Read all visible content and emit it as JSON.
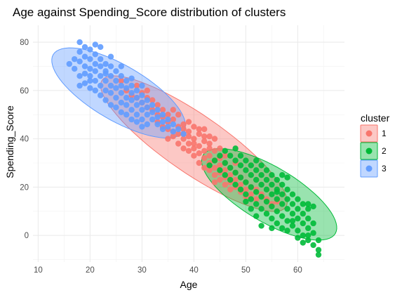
{
  "chart_data": {
    "type": "scatter",
    "title": "Age against Spending_Score distribution of clusters",
    "xlabel": "Age",
    "ylabel": "Spending_Score",
    "xlim": [
      9,
      69
    ],
    "ylim": [
      -11,
      87
    ],
    "xticks": [
      10,
      20,
      30,
      40,
      50,
      60
    ],
    "yticks": [
      0,
      20,
      40,
      60,
      80
    ],
    "grid": true,
    "legend": {
      "title": "cluster",
      "placement": "right"
    },
    "series": [
      {
        "name": "1",
        "color": "#F8766D",
        "ellipse": {
          "center": [
            40,
            38
          ],
          "angle_deg": -34.6,
          "semi_major": 21.5,
          "semi_minor": 5.6
        },
        "points": [
          [
            26,
            64
          ],
          [
            27,
            60
          ],
          [
            28,
            58
          ],
          [
            29,
            57
          ],
          [
            29,
            62
          ],
          [
            30,
            55
          ],
          [
            30,
            59
          ],
          [
            31,
            53
          ],
          [
            31,
            57
          ],
          [
            32,
            52
          ],
          [
            32,
            56
          ],
          [
            33,
            50
          ],
          [
            33,
            54
          ],
          [
            33,
            47
          ],
          [
            34,
            52
          ],
          [
            34,
            45
          ],
          [
            34,
            49
          ],
          [
            35,
            50
          ],
          [
            35,
            44
          ],
          [
            35,
            47
          ],
          [
            36,
            48
          ],
          [
            36,
            43
          ],
          [
            36,
            41
          ],
          [
            37,
            45
          ],
          [
            37,
            42
          ],
          [
            37,
            38
          ],
          [
            38,
            44
          ],
          [
            38,
            40
          ],
          [
            38,
            36
          ],
          [
            38,
            42
          ],
          [
            39,
            41
          ],
          [
            39,
            38
          ],
          [
            39,
            35
          ],
          [
            39,
            43
          ],
          [
            40,
            40
          ],
          [
            40,
            36
          ],
          [
            40,
            33
          ],
          [
            40,
            38
          ],
          [
            41,
            42
          ],
          [
            41,
            37
          ],
          [
            41,
            34
          ],
          [
            41,
            30
          ],
          [
            42,
            39
          ],
          [
            42,
            35
          ],
          [
            42,
            32
          ],
          [
            42,
            28
          ],
          [
            42,
            44
          ],
          [
            43,
            36
          ],
          [
            43,
            33
          ],
          [
            43,
            30
          ],
          [
            43,
            27
          ],
          [
            43,
            38
          ],
          [
            44,
            35
          ],
          [
            44,
            31
          ],
          [
            44,
            28
          ],
          [
            44,
            25
          ],
          [
            44,
            22
          ],
          [
            45,
            32
          ],
          [
            45,
            29
          ],
          [
            45,
            26
          ],
          [
            45,
            23
          ],
          [
            45,
            36
          ],
          [
            46,
            30
          ],
          [
            46,
            27
          ],
          [
            46,
            24
          ],
          [
            46,
            21
          ],
          [
            47,
            28
          ],
          [
            47,
            25
          ],
          [
            47,
            22
          ],
          [
            47,
            19
          ],
          [
            48,
            26
          ],
          [
            48,
            23
          ],
          [
            48,
            20
          ],
          [
            49,
            24
          ],
          [
            49,
            21
          ],
          [
            49,
            18
          ],
          [
            50,
            22
          ],
          [
            50,
            19
          ],
          [
            50,
            16
          ],
          [
            51,
            20
          ],
          [
            51,
            17
          ],
          [
            52,
            19
          ],
          [
            52,
            15
          ],
          [
            53,
            17
          ],
          [
            54,
            15
          ],
          [
            55,
            13
          ],
          [
            56,
            14
          ],
          [
            31,
            60
          ],
          [
            35,
            40
          ],
          [
            40,
            45
          ],
          [
            38,
            46
          ],
          [
            43,
            41
          ],
          [
            46,
            33
          ],
          [
            48,
            30
          ],
          [
            44,
            40
          ],
          [
            41,
            44
          ],
          [
            37,
            50
          ],
          [
            36,
            52
          ],
          [
            39,
            47
          ],
          [
            42,
            41
          ]
        ]
      },
      {
        "name": "2",
        "color": "#00BA38",
        "ellipse": {
          "center": [
            54.5,
            17
          ],
          "angle_deg": -30.6,
          "semi_major": 14.8,
          "semi_minor": 5.3
        },
        "points": [
          [
            43,
            29
          ],
          [
            44,
            31
          ],
          [
            45,
            27
          ],
          [
            45,
            33
          ],
          [
            46,
            25
          ],
          [
            46,
            30
          ],
          [
            46,
            35
          ],
          [
            47,
            23
          ],
          [
            47,
            28
          ],
          [
            47,
            33
          ],
          [
            48,
            21
          ],
          [
            48,
            26
          ],
          [
            48,
            31
          ],
          [
            48,
            36
          ],
          [
            49,
            19
          ],
          [
            49,
            24
          ],
          [
            49,
            29
          ],
          [
            49,
            33
          ],
          [
            50,
            17
          ],
          [
            50,
            22
          ],
          [
            50,
            27
          ],
          [
            50,
            31
          ],
          [
            51,
            15
          ],
          [
            51,
            20
          ],
          [
            51,
            25
          ],
          [
            51,
            29
          ],
          [
            52,
            13
          ],
          [
            52,
            18
          ],
          [
            52,
            23
          ],
          [
            52,
            27
          ],
          [
            52,
            31
          ],
          [
            53,
            11
          ],
          [
            53,
            16
          ],
          [
            53,
            21
          ],
          [
            53,
            25
          ],
          [
            53,
            29
          ],
          [
            54,
            9
          ],
          [
            54,
            14
          ],
          [
            54,
            19
          ],
          [
            54,
            23
          ],
          [
            54,
            27
          ],
          [
            55,
            7
          ],
          [
            55,
            12
          ],
          [
            55,
            17
          ],
          [
            55,
            21
          ],
          [
            55,
            25
          ],
          [
            56,
            10
          ],
          [
            56,
            15
          ],
          [
            56,
            19
          ],
          [
            56,
            23
          ],
          [
            57,
            8
          ],
          [
            57,
            13
          ],
          [
            57,
            17
          ],
          [
            57,
            21
          ],
          [
            58,
            6
          ],
          [
            58,
            11
          ],
          [
            58,
            15
          ],
          [
            58,
            19
          ],
          [
            59,
            4
          ],
          [
            59,
            9
          ],
          [
            59,
            13
          ],
          [
            59,
            17
          ],
          [
            60,
            2
          ],
          [
            60,
            7
          ],
          [
            60,
            11
          ],
          [
            60,
            15
          ],
          [
            61,
            0
          ],
          [
            61,
            5
          ],
          [
            61,
            9
          ],
          [
            61,
            13
          ],
          [
            62,
            -2
          ],
          [
            62,
            3
          ],
          [
            62,
            7
          ],
          [
            62,
            11
          ],
          [
            63,
            1
          ],
          [
            63,
            5
          ],
          [
            63,
            -4
          ],
          [
            64,
            -6
          ],
          [
            64,
            -8
          ],
          [
            64,
            -2
          ],
          [
            55,
            3
          ],
          [
            57,
            3
          ],
          [
            58,
            2
          ],
          [
            60,
            -1
          ],
          [
            61,
            -3
          ],
          [
            56,
            5
          ],
          [
            59,
            6
          ],
          [
            51,
            11
          ],
          [
            52,
            8
          ],
          [
            50,
            14
          ],
          [
            53,
            4
          ],
          [
            62,
            13
          ],
          [
            63,
            12
          ],
          [
            62,
            0
          ],
          [
            57,
            25
          ],
          [
            56,
            18
          ],
          [
            58,
            24
          ]
        ]
      },
      {
        "name": "3",
        "color": "#619CFF",
        "ellipse": {
          "center": [
            25.5,
            59
          ],
          "angle_deg": -30.3,
          "semi_major": 14.6,
          "semi_minor": 5.3
        },
        "points": [
          [
            18,
            80
          ],
          [
            18,
            76
          ],
          [
            18,
            72
          ],
          [
            19,
            78
          ],
          [
            19,
            74
          ],
          [
            19,
            70
          ],
          [
            19,
            67
          ],
          [
            20,
            77
          ],
          [
            20,
            73
          ],
          [
            20,
            69
          ],
          [
            20,
            66
          ],
          [
            21,
            75
          ],
          [
            21,
            71
          ],
          [
            21,
            68
          ],
          [
            21,
            64
          ],
          [
            22,
            73
          ],
          [
            22,
            70
          ],
          [
            22,
            66
          ],
          [
            22,
            62
          ],
          [
            23,
            71
          ],
          [
            23,
            68
          ],
          [
            23,
            64
          ],
          [
            23,
            60
          ],
          [
            24,
            70
          ],
          [
            24,
            66
          ],
          [
            24,
            62
          ],
          [
            24,
            59
          ],
          [
            25,
            68
          ],
          [
            25,
            64
          ],
          [
            25,
            61
          ],
          [
            25,
            57
          ],
          [
            26,
            66
          ],
          [
            26,
            62
          ],
          [
            26,
            59
          ],
          [
            26,
            55
          ],
          [
            27,
            64
          ],
          [
            27,
            61
          ],
          [
            27,
            57
          ],
          [
            27,
            54
          ],
          [
            28,
            62
          ],
          [
            28,
            59
          ],
          [
            28,
            56
          ],
          [
            28,
            52
          ],
          [
            29,
            60
          ],
          [
            29,
            57
          ],
          [
            29,
            54
          ],
          [
            29,
            50
          ],
          [
            30,
            58
          ],
          [
            30,
            55
          ],
          [
            30,
            52
          ],
          [
            30,
            48
          ],
          [
            31,
            56
          ],
          [
            31,
            53
          ],
          [
            31,
            50
          ],
          [
            31,
            46
          ],
          [
            32,
            54
          ],
          [
            32,
            51
          ],
          [
            32,
            48
          ],
          [
            33,
            52
          ],
          [
            33,
            49
          ],
          [
            33,
            46
          ],
          [
            34,
            50
          ],
          [
            34,
            47
          ],
          [
            34,
            44
          ],
          [
            35,
            48
          ],
          [
            35,
            45
          ],
          [
            36,
            46
          ],
          [
            36,
            43
          ],
          [
            37,
            44
          ],
          [
            38,
            42
          ],
          [
            17,
            73
          ],
          [
            16,
            71
          ],
          [
            17,
            69
          ],
          [
            18,
            66
          ],
          [
            19,
            63
          ],
          [
            20,
            61
          ],
          [
            21,
            60
          ],
          [
            22,
            58
          ],
          [
            23,
            56
          ],
          [
            24,
            54
          ],
          [
            25,
            53
          ],
          [
            26,
            51
          ],
          [
            27,
            50
          ],
          [
            28,
            48
          ],
          [
            29,
            47
          ],
          [
            30,
            45
          ],
          [
            20,
            64
          ],
          [
            18,
            62
          ],
          [
            23,
            67
          ],
          [
            26,
            70
          ],
          [
            28,
            65
          ],
          [
            30,
            62
          ],
          [
            22,
            78
          ],
          [
            24,
            74
          ],
          [
            21,
            79
          ]
        ]
      }
    ]
  }
}
